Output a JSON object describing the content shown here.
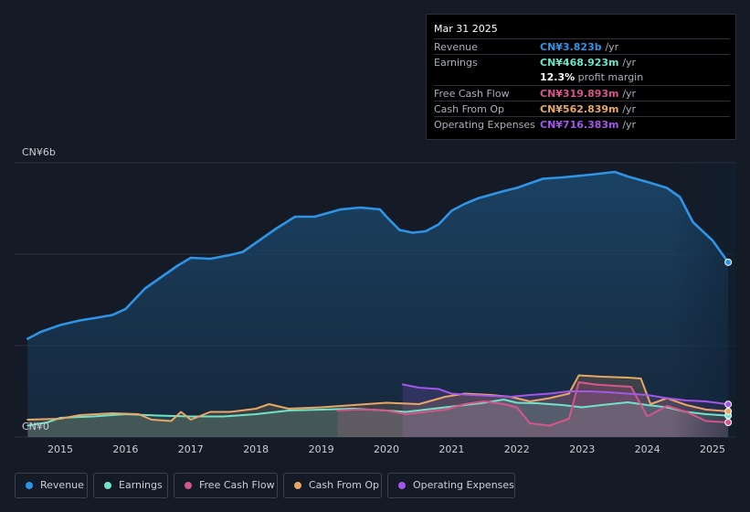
{
  "chart_data": {
    "type": "area",
    "y_axis": {
      "top_label": "CN¥6b",
      "bottom_label": "CN¥0",
      "ylim": [
        0,
        6
      ]
    },
    "x_ticks": [
      "2015",
      "2016",
      "2017",
      "2018",
      "2019",
      "2020",
      "2021",
      "2022",
      "2023",
      "2024",
      "2025"
    ],
    "series": [
      {
        "name": "Revenue",
        "color": "#2f94e6",
        "x": [
          2014.5,
          2014.7,
          2015.0,
          2015.3,
          2015.6,
          2015.8,
          2016.0,
          2016.3,
          2016.6,
          2016.8,
          2017.0,
          2017.3,
          2017.6,
          2017.8,
          2018.0,
          2018.3,
          2018.6,
          2018.9,
          2019.1,
          2019.3,
          2019.6,
          2019.9,
          2020.0,
          2020.2,
          2020.4,
          2020.6,
          2020.8,
          2021.0,
          2021.2,
          2021.4,
          2021.6,
          2021.8,
          2022.0,
          2022.2,
          2022.4,
          2022.7,
          2023.0,
          2023.2,
          2023.5,
          2023.7,
          2024.0,
          2024.3,
          2024.5,
          2024.7,
          2025.0,
          2025.24
        ],
        "values": [
          2.15,
          2.3,
          2.45,
          2.55,
          2.62,
          2.67,
          2.8,
          3.25,
          3.55,
          3.75,
          3.92,
          3.9,
          3.98,
          4.05,
          4.25,
          4.55,
          4.82,
          4.82,
          4.9,
          4.98,
          5.02,
          4.98,
          4.82,
          4.53,
          4.47,
          4.5,
          4.65,
          4.95,
          5.1,
          5.22,
          5.3,
          5.38,
          5.45,
          5.55,
          5.65,
          5.68,
          5.72,
          5.75,
          5.8,
          5.7,
          5.58,
          5.45,
          5.25,
          4.7,
          4.3,
          3.823
        ]
      },
      {
        "name": "Earnings",
        "color": "#6fe3c8",
        "x": [
          2014.5,
          2014.8,
          2015.0,
          2015.5,
          2016.0,
          2016.5,
          2017.0,
          2017.5,
          2018.0,
          2018.5,
          2019.0,
          2019.5,
          2020.0,
          2020.3,
          2020.6,
          2020.9,
          2021.2,
          2021.5,
          2021.8,
          2022.0,
          2022.3,
          2022.7,
          2023.0,
          2023.3,
          2023.7,
          2024.0,
          2024.3,
          2024.6,
          2024.9,
          2025.24
        ],
        "values": [
          0.25,
          0.32,
          0.42,
          0.45,
          0.5,
          0.47,
          0.45,
          0.45,
          0.5,
          0.58,
          0.6,
          0.62,
          0.58,
          0.55,
          0.6,
          0.65,
          0.7,
          0.75,
          0.82,
          0.75,
          0.74,
          0.7,
          0.65,
          0.7,
          0.76,
          0.7,
          0.65,
          0.55,
          0.5,
          0.469
        ]
      },
      {
        "name": "Free Cash Flow",
        "color": "#d6558b",
        "x": [
          2019.25,
          2019.5,
          2019.8,
          2020.0,
          2020.3,
          2020.6,
          2020.9,
          2021.2,
          2021.5,
          2021.8,
          2022.0,
          2022.2,
          2022.5,
          2022.8,
          2022.95,
          2023.2,
          2023.5,
          2023.75,
          2024.0,
          2024.3,
          2024.6,
          2024.9,
          2025.24
        ],
        "values": [
          0.58,
          0.6,
          0.6,
          0.58,
          0.5,
          0.55,
          0.6,
          0.72,
          0.78,
          0.72,
          0.65,
          0.3,
          0.25,
          0.4,
          1.2,
          1.15,
          1.12,
          1.1,
          0.45,
          0.68,
          0.55,
          0.35,
          0.32
        ]
      },
      {
        "name": "Cash From Op",
        "color": "#e8a765",
        "x": [
          2014.5,
          2015.0,
          2015.3,
          2015.8,
          2016.2,
          2016.4,
          2016.7,
          2016.85,
          2017.0,
          2017.3,
          2017.6,
          2018.0,
          2018.2,
          2018.5,
          2019.0,
          2019.5,
          2020.0,
          2020.5,
          2020.9,
          2021.2,
          2021.6,
          2021.9,
          2022.2,
          2022.5,
          2022.8,
          2022.95,
          2023.3,
          2023.7,
          2023.9,
          2024.05,
          2024.3,
          2024.6,
          2024.9,
          2025.24
        ],
        "values": [
          0.38,
          0.4,
          0.48,
          0.52,
          0.5,
          0.38,
          0.35,
          0.55,
          0.38,
          0.55,
          0.55,
          0.62,
          0.72,
          0.62,
          0.65,
          0.7,
          0.75,
          0.72,
          0.88,
          0.95,
          0.92,
          0.88,
          0.78,
          0.85,
          0.95,
          1.35,
          1.32,
          1.3,
          1.28,
          0.72,
          0.85,
          0.7,
          0.6,
          0.563
        ]
      },
      {
        "name": "Operating Expenses",
        "color": "#a357e8",
        "x": [
          2020.25,
          2020.5,
          2020.8,
          2021.0,
          2021.3,
          2021.6,
          2021.9,
          2022.2,
          2022.5,
          2022.8,
          2023.1,
          2023.4,
          2023.7,
          2024.0,
          2024.3,
          2024.6,
          2024.9,
          2025.24
        ],
        "values": [
          1.15,
          1.08,
          1.05,
          0.95,
          0.92,
          0.9,
          0.88,
          0.92,
          0.95,
          1.0,
          1.0,
          0.98,
          0.95,
          0.92,
          0.85,
          0.8,
          0.78,
          0.716
        ]
      }
    ]
  },
  "tooltip": {
    "date": "Mar 31 2025",
    "rows": [
      {
        "label": "Revenue",
        "value": "CN¥3.823b",
        "unit": "/yr",
        "color": "#2f94e6"
      },
      {
        "label": "Earnings",
        "value": "CN¥468.923m",
        "unit": "/yr",
        "color": "#6fe3c8"
      },
      {
        "label": "Free Cash Flow",
        "value": "CN¥319.893m",
        "unit": "/yr",
        "color": "#d6558b"
      },
      {
        "label": "Cash From Op",
        "value": "CN¥562.839m",
        "unit": "/yr",
        "color": "#e8a765"
      },
      {
        "label": "Operating Expenses",
        "value": "CN¥716.383m",
        "unit": "/yr",
        "color": "#a357e8"
      }
    ],
    "margin_value": "12.3%",
    "margin_label": "profit margin"
  },
  "legend": [
    {
      "label": "Revenue",
      "color": "#2f94e6"
    },
    {
      "label": "Earnings",
      "color": "#6fe3c8"
    },
    {
      "label": "Free Cash Flow",
      "color": "#d6558b"
    },
    {
      "label": "Cash From Op",
      "color": "#e8a765"
    },
    {
      "label": "Operating Expenses",
      "color": "#a357e8"
    }
  ]
}
